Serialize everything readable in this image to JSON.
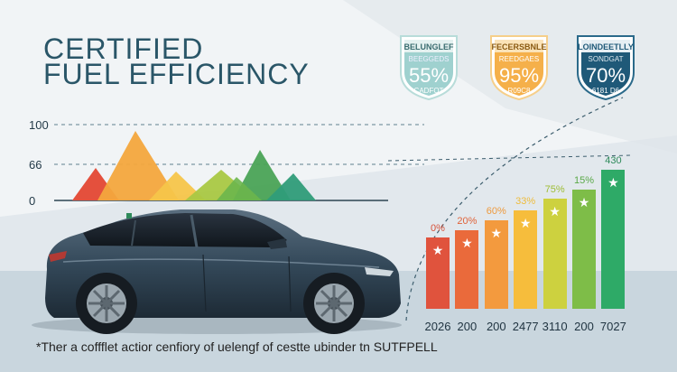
{
  "title_line1": "CERTIFIED",
  "title_line2": "FUEL EFFICIENCY",
  "left_chart": {
    "y_ticks": [
      "100",
      "66",
      "0"
    ]
  },
  "badges": [
    {
      "label": "BELUNGLEF",
      "small_top": "BEEGGEDS",
      "percent": "55%",
      "small_bottom": "CADFOT",
      "color": "#9fd1cf"
    },
    {
      "label": "FECERSBNLE",
      "small_top": "REEDGAES",
      "percent": "95%",
      "small_bottom": "R09C8",
      "color": "#f5b04a"
    },
    {
      "label": "LOINDEETLLY",
      "small_top": "SONDGAT",
      "percent": "70%",
      "small_bottom": "6181 D6",
      "color": "#1f5978"
    }
  ],
  "bar_chart": {
    "categories": [
      "2026",
      "200",
      "200",
      "2477",
      "3110",
      "200",
      "7027"
    ],
    "top_labels": [
      "0%",
      "20%",
      "60%",
      "33%",
      "75%",
      "15%",
      "430"
    ],
    "values": [
      30,
      33,
      37,
      41,
      46,
      50,
      58
    ],
    "colors": [
      "#e0533d",
      "#ea6a3b",
      "#f39a3e",
      "#f6bd3c",
      "#cdd13f",
      "#7ebd48",
      "#2eaa67"
    ],
    "label_colors": [
      "#d65038",
      "#e0633a",
      "#ee9a3e",
      "#eebc3c",
      "#9ebd35",
      "#5aa948",
      "#2e8a5a"
    ]
  },
  "caption": "*Ther a coffflet actior cenfiory of uelengf of cestte ubinder tn SUTFPELL"
}
